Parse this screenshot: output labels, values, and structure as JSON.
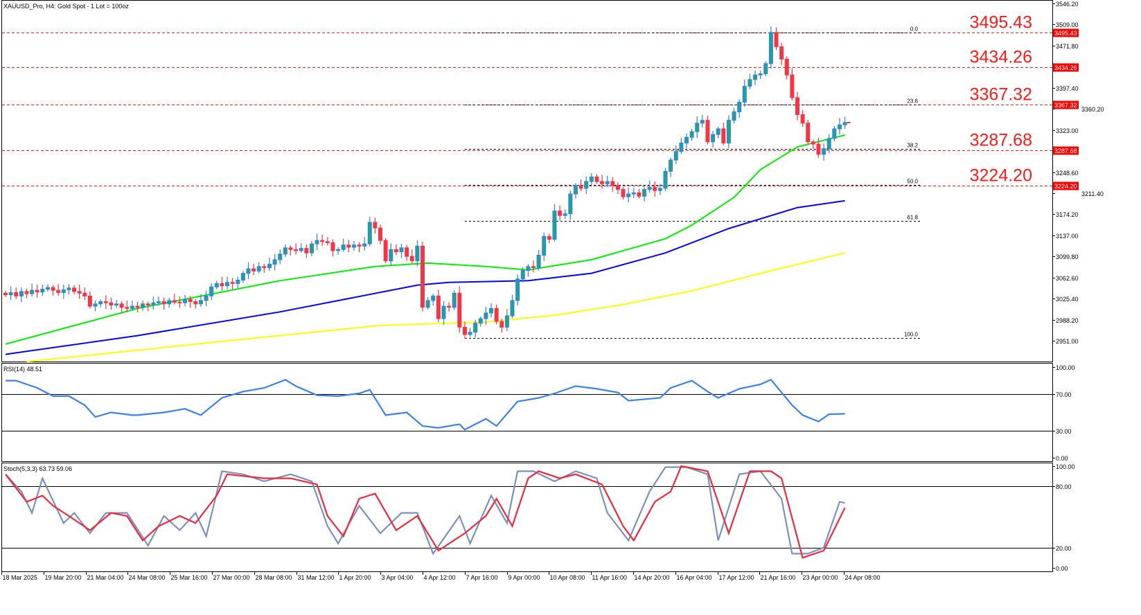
{
  "header": {
    "title": "XAUUSD_Pro, H4:  Gold  Spot - 1 Lot = 100oz"
  },
  "colors": {
    "bull_border": "#2f7df6",
    "bull_fill": "#26a08c",
    "bear": "#f23645",
    "ma_fast": "#00ee00",
    "ma_mid": "#0000ff",
    "ma_slow": "#ffff00",
    "rsi": "#3a80f2",
    "stoch_main": "#7b8fc0",
    "stoch_signal": "#f0283c",
    "level": "#ff1a1a"
  },
  "chart_data": [
    {
      "type": "candlestick",
      "title": "XAUUSD_Pro, H4:  Gold  Spot - 1 Lot = 100oz",
      "ylim": [
        2951.0,
        3546.2
      ],
      "y_ticks": [
        "3546.20",
        "3509.00",
        "3471.80",
        "3397.40",
        "3360.20",
        "3323.00",
        "3248.60",
        "3211.40",
        "3174.20",
        "3137.00",
        "3099.80",
        "3062.60",
        "3025.40",
        "2988.20",
        "2951.00"
      ],
      "x_ticks": [
        "18 Mar 2025",
        "19 Mar 20:00",
        "21 Mar 04:00",
        "24 Mar 08:00",
        "25 Mar 16:00",
        "27 Mar 00:00",
        "28 Mar 08:00",
        "31 Mar 12:00",
        "1 Apr 20:00",
        "3 Apr 04:00",
        "4 Apr 12:00",
        "7 Apr 16:00",
        "9 Apr 00:00",
        "10 Apr 08:00",
        "11 Apr 16:00",
        "14 Apr 20:00",
        "16 Apr 04:00",
        "17 Apr 12:00",
        "21 Apr 16:00",
        "23 Apr 00:00",
        "24 Apr 08:00"
      ],
      "closes": [
        3032,
        3036,
        3030,
        3038,
        3034,
        3040,
        3037,
        3042,
        3045,
        3040,
        3036,
        3041,
        3044,
        3038,
        3035,
        3030,
        3012,
        3016,
        3020,
        3018,
        3014,
        3016,
        3010,
        3008,
        3012,
        3010,
        3016,
        3014,
        3018,
        3020,
        3016,
        3022,
        3019,
        3018,
        3024,
        3020,
        3016,
        3022,
        3030,
        3046,
        3052,
        3048,
        3054,
        3052,
        3058,
        3070,
        3078,
        3074,
        3082,
        3080,
        3086,
        3094,
        3104,
        3115,
        3112,
        3110,
        3114,
        3106,
        3122,
        3128,
        3126,
        3124,
        3110,
        3112,
        3120,
        3116,
        3120,
        3118,
        3122,
        3160,
        3150,
        3128,
        3092,
        3112,
        3108,
        3115,
        3100,
        3092,
        3118,
        3010,
        3022,
        3030,
        2990,
        3012,
        3010,
        3035,
        2975,
        2962,
        2966,
        2982,
        2990,
        3000,
        3008,
        2985,
        2975,
        2995,
        3022,
        3060,
        3075,
        3082,
        3080,
        3102,
        3135,
        3130,
        3180,
        3172,
        3175,
        3210,
        3225,
        3220,
        3232,
        3240,
        3232,
        3228,
        3232,
        3225,
        3218,
        3205,
        3210,
        3212,
        3206,
        3218,
        3222,
        3216,
        3220,
        3250,
        3270,
        3285,
        3300,
        3310,
        3320,
        3335,
        3340,
        3302,
        3315,
        3325,
        3300,
        3340,
        3355,
        3372,
        3400,
        3412,
        3420,
        3422,
        3440,
        3495,
        3470,
        3448,
        3420,
        3380,
        3350,
        3335,
        3302,
        3298,
        3280,
        3290,
        3308,
        3325,
        3332,
        3336
      ],
      "moving_averages": [
        {
          "color": "#00ee00",
          "points": [
            [
              0,
              2945
            ],
            [
              25,
              3008
            ],
            [
              52,
              3057
            ],
            [
              70,
              3082
            ],
            [
              80,
              3088
            ],
            [
              91,
              3082
            ],
            [
              99,
              3076
            ],
            [
              111,
              3094
            ],
            [
              125,
              3131
            ],
            [
              130,
              3155
            ],
            [
              138,
              3204
            ],
            [
              143,
              3253
            ],
            [
              150,
              3293
            ],
            [
              159,
              3314
            ]
          ]
        },
        {
          "color": "#0000ff",
          "points": [
            [
              0,
              2927
            ],
            [
              25,
              2960
            ],
            [
              52,
              3002
            ],
            [
              78,
              3049
            ],
            [
              84,
              3054
            ],
            [
              99,
              3057
            ],
            [
              111,
              3070
            ],
            [
              125,
              3106
            ],
            [
              137,
              3149
            ],
            [
              150,
              3186
            ],
            [
              159,
              3198
            ]
          ]
        },
        {
          "color": "#ffff00",
          "points": [
            [
              4,
              2914
            ],
            [
              38,
              2947
            ],
            [
              71,
              2978
            ],
            [
              91,
              2984
            ],
            [
              104,
              2996
            ],
            [
              117,
              3015
            ],
            [
              130,
              3039
            ],
            [
              143,
              3070
            ],
            [
              159,
              3106
            ]
          ]
        }
      ],
      "levels": [
        "3495.43",
        "3434.26",
        "3367.32",
        "3287.68",
        "3224.20"
      ],
      "fibonacci": {
        "high": 3495.43,
        "low": 2956.0,
        "start_bar": 87,
        "levels": [
          "0.0",
          "23.6",
          "38.2",
          "50.0",
          "61.8",
          "100.0"
        ]
      }
    },
    {
      "type": "line",
      "label": "RSI(14) 48.51",
      "ylim": [
        0,
        100
      ],
      "y_ticks": [
        "100.00",
        "70.00",
        "30.00",
        "0.00"
      ],
      "levels": [
        70,
        30
      ],
      "points": [
        [
          0,
          85
        ],
        [
          2,
          85
        ],
        [
          6,
          77
        ],
        [
          9,
          68
        ],
        [
          12,
          68
        ],
        [
          15,
          58
        ],
        [
          17,
          45
        ],
        [
          20,
          50
        ],
        [
          24,
          47
        ],
        [
          25,
          47
        ],
        [
          30,
          50
        ],
        [
          34,
          54
        ],
        [
          37,
          47
        ],
        [
          41,
          66
        ],
        [
          45,
          73
        ],
        [
          49,
          77
        ],
        [
          53,
          86
        ],
        [
          55,
          79
        ],
        [
          59,
          69
        ],
        [
          63,
          68
        ],
        [
          67,
          71
        ],
        [
          69,
          75
        ],
        [
          72,
          47
        ],
        [
          76,
          50
        ],
        [
          79,
          35
        ],
        [
          82,
          33
        ],
        [
          86,
          37
        ],
        [
          87,
          31
        ],
        [
          91,
          43
        ],
        [
          93,
          35
        ],
        [
          97,
          62
        ],
        [
          101,
          66
        ],
        [
          104,
          71
        ],
        [
          108,
          79
        ],
        [
          112,
          76
        ],
        [
          116,
          72
        ],
        [
          118,
          63
        ],
        [
          124,
          66
        ],
        [
          126,
          77
        ],
        [
          130,
          85
        ],
        [
          133,
          73
        ],
        [
          135,
          66
        ],
        [
          139,
          76
        ],
        [
          143,
          81
        ],
        [
          145,
          86
        ],
        [
          149,
          58
        ],
        [
          151,
          47
        ],
        [
          154,
          40
        ],
        [
          156,
          48
        ],
        [
          159,
          48.5
        ]
      ]
    },
    {
      "type": "line",
      "label": "Stoch(5,3,3) 63.73 59.06",
      "ylim": [
        0,
        100
      ],
      "y_ticks": [
        "100.00",
        "80.00",
        "20.00",
        "0.00"
      ],
      "levels": [
        80,
        20
      ],
      "main": [
        [
          0,
          92
        ],
        [
          3,
          75
        ],
        [
          5,
          54
        ],
        [
          7,
          88
        ],
        [
          11,
          44
        ],
        [
          13,
          54
        ],
        [
          16,
          34
        ],
        [
          19,
          54
        ],
        [
          23,
          54
        ],
        [
          27,
          22
        ],
        [
          30,
          51
        ],
        [
          33,
          37
        ],
        [
          36,
          54
        ],
        [
          38,
          31
        ],
        [
          41,
          95
        ],
        [
          45,
          92
        ],
        [
          49,
          85
        ],
        [
          54,
          92
        ],
        [
          58,
          85
        ],
        [
          61,
          41
        ],
        [
          63,
          24
        ],
        [
          67,
          61
        ],
        [
          71,
          34
        ],
        [
          75,
          54
        ],
        [
          78,
          54
        ],
        [
          81,
          14
        ],
        [
          86,
          51
        ],
        [
          88,
          24
        ],
        [
          92,
          71
        ],
        [
          95,
          44
        ],
        [
          97,
          95
        ],
        [
          100,
          95
        ],
        [
          104,
          85
        ],
        [
          108,
          95
        ],
        [
          112,
          88
        ],
        [
          114,
          54
        ],
        [
          118,
          27
        ],
        [
          122,
          75
        ],
        [
          125,
          99
        ],
        [
          129,
          99
        ],
        [
          133,
          92
        ],
        [
          135,
          27
        ],
        [
          139,
          92
        ],
        [
          143,
          95
        ],
        [
          147,
          68
        ],
        [
          149,
          14
        ],
        [
          152,
          14
        ],
        [
          155,
          20
        ],
        [
          158,
          65
        ],
        [
          159,
          63.73
        ]
      ],
      "signal": [
        [
          0,
          92
        ],
        [
          4,
          65
        ],
        [
          7,
          71
        ],
        [
          9,
          61
        ],
        [
          12,
          51
        ],
        [
          16,
          37
        ],
        [
          20,
          54
        ],
        [
          23,
          51
        ],
        [
          26,
          27
        ],
        [
          29,
          41
        ],
        [
          33,
          51
        ],
        [
          36,
          44
        ],
        [
          40,
          71
        ],
        [
          42,
          92
        ],
        [
          49,
          88
        ],
        [
          54,
          88
        ],
        [
          59,
          82
        ],
        [
          61,
          51
        ],
        [
          64,
          31
        ],
        [
          67,
          68
        ],
        [
          70,
          73
        ],
        [
          74,
          37
        ],
        [
          78,
          51
        ],
        [
          82,
          17
        ],
        [
          87,
          34
        ],
        [
          91,
          51
        ],
        [
          93,
          68
        ],
        [
          96,
          41
        ],
        [
          99,
          88
        ],
        [
          101,
          95
        ],
        [
          105,
          88
        ],
        [
          108,
          92
        ],
        [
          113,
          82
        ],
        [
          117,
          41
        ],
        [
          119,
          27
        ],
        [
          123,
          65
        ],
        [
          126,
          75
        ],
        [
          128,
          100
        ],
        [
          133,
          95
        ],
        [
          137,
          34
        ],
        [
          141,
          95
        ],
        [
          145,
          95
        ],
        [
          147,
          88
        ],
        [
          151,
          10
        ],
        [
          155,
          17
        ],
        [
          159,
          59.06
        ]
      ]
    }
  ]
}
